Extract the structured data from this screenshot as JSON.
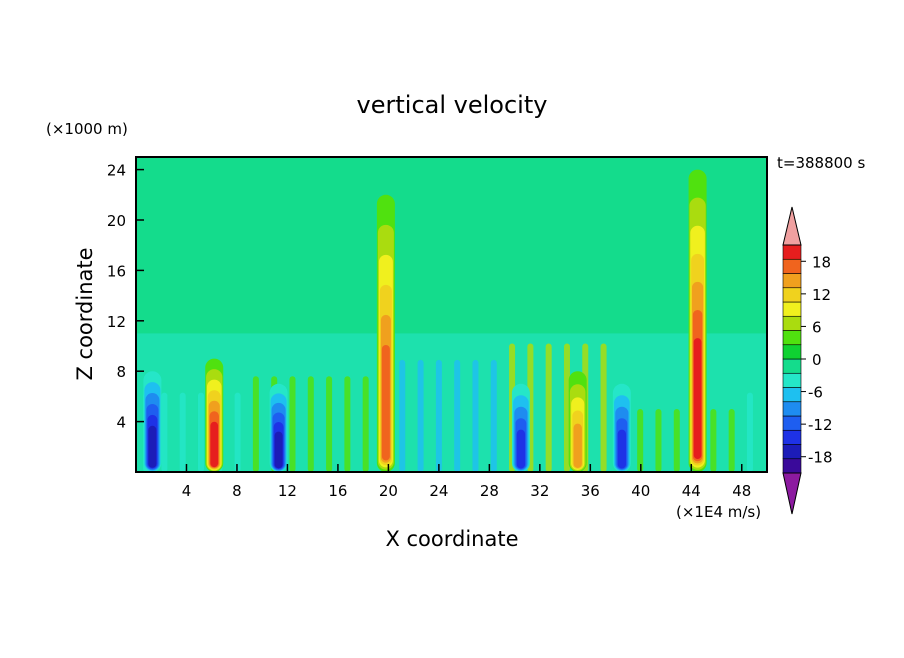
{
  "chart_data": {
    "type": "heatmap",
    "title": "vertical velocity",
    "xlabel": "X coordinate",
    "ylabel": "Z coordinate",
    "x_unit_label": "(×1E4 m/s)",
    "y_unit_label": "(×1000 m)",
    "time_label": "t=388800  s",
    "xlim": [
      0,
      50
    ],
    "ylim": [
      0,
      25
    ],
    "x_ticks": [
      4,
      8,
      12,
      16,
      20,
      24,
      28,
      32,
      36,
      40,
      44,
      48
    ],
    "y_ticks": [
      4,
      8,
      12,
      16,
      20,
      24
    ],
    "colorbar": {
      "tick_values": [
        18,
        12,
        6,
        0,
        -6,
        -12,
        -18
      ],
      "levels": [
        -21,
        -18,
        -15,
        -12,
        -9,
        -6,
        -3,
        0,
        3,
        6,
        9,
        12,
        15,
        18,
        21
      ],
      "colors": [
        "#3a0a9a",
        "#1c1cb8",
        "#1e32e6",
        "#1e5ef0",
        "#1e8cf0",
        "#1ec0f0",
        "#25e6c8",
        "#14dc8c",
        "#0fd232",
        "#50e10f",
        "#aadc0f",
        "#f0f01e",
        "#f0d21e",
        "#f0a01e",
        "#f0641e",
        "#e61e1e"
      ],
      "under_color": "#8c1aa0",
      "over_color": "#f0a0a0"
    },
    "features": [
      {
        "name": "updraft core",
        "x": 6.2,
        "z_max": 9,
        "amplitude": 20
      },
      {
        "name": "updraft core",
        "x": 19.8,
        "z_max": 22,
        "amplitude": 19
      },
      {
        "name": "updraft core",
        "x": 35.0,
        "z_max": 8,
        "amplitude": 15
      },
      {
        "name": "updraft core",
        "x": 44.5,
        "z_max": 24,
        "amplitude": 20
      },
      {
        "name": "downdraft core",
        "x": 1.3,
        "z_max": 8,
        "amplitude": -18
      },
      {
        "name": "downdraft core",
        "x": 11.3,
        "z_max": 7,
        "amplitude": -18
      },
      {
        "name": "downdraft core",
        "x": 30.5,
        "z_max": 7,
        "amplitude": -16
      },
      {
        "name": "downdraft core",
        "x": 38.5,
        "z_max": 7,
        "amplitude": -16
      }
    ]
  }
}
